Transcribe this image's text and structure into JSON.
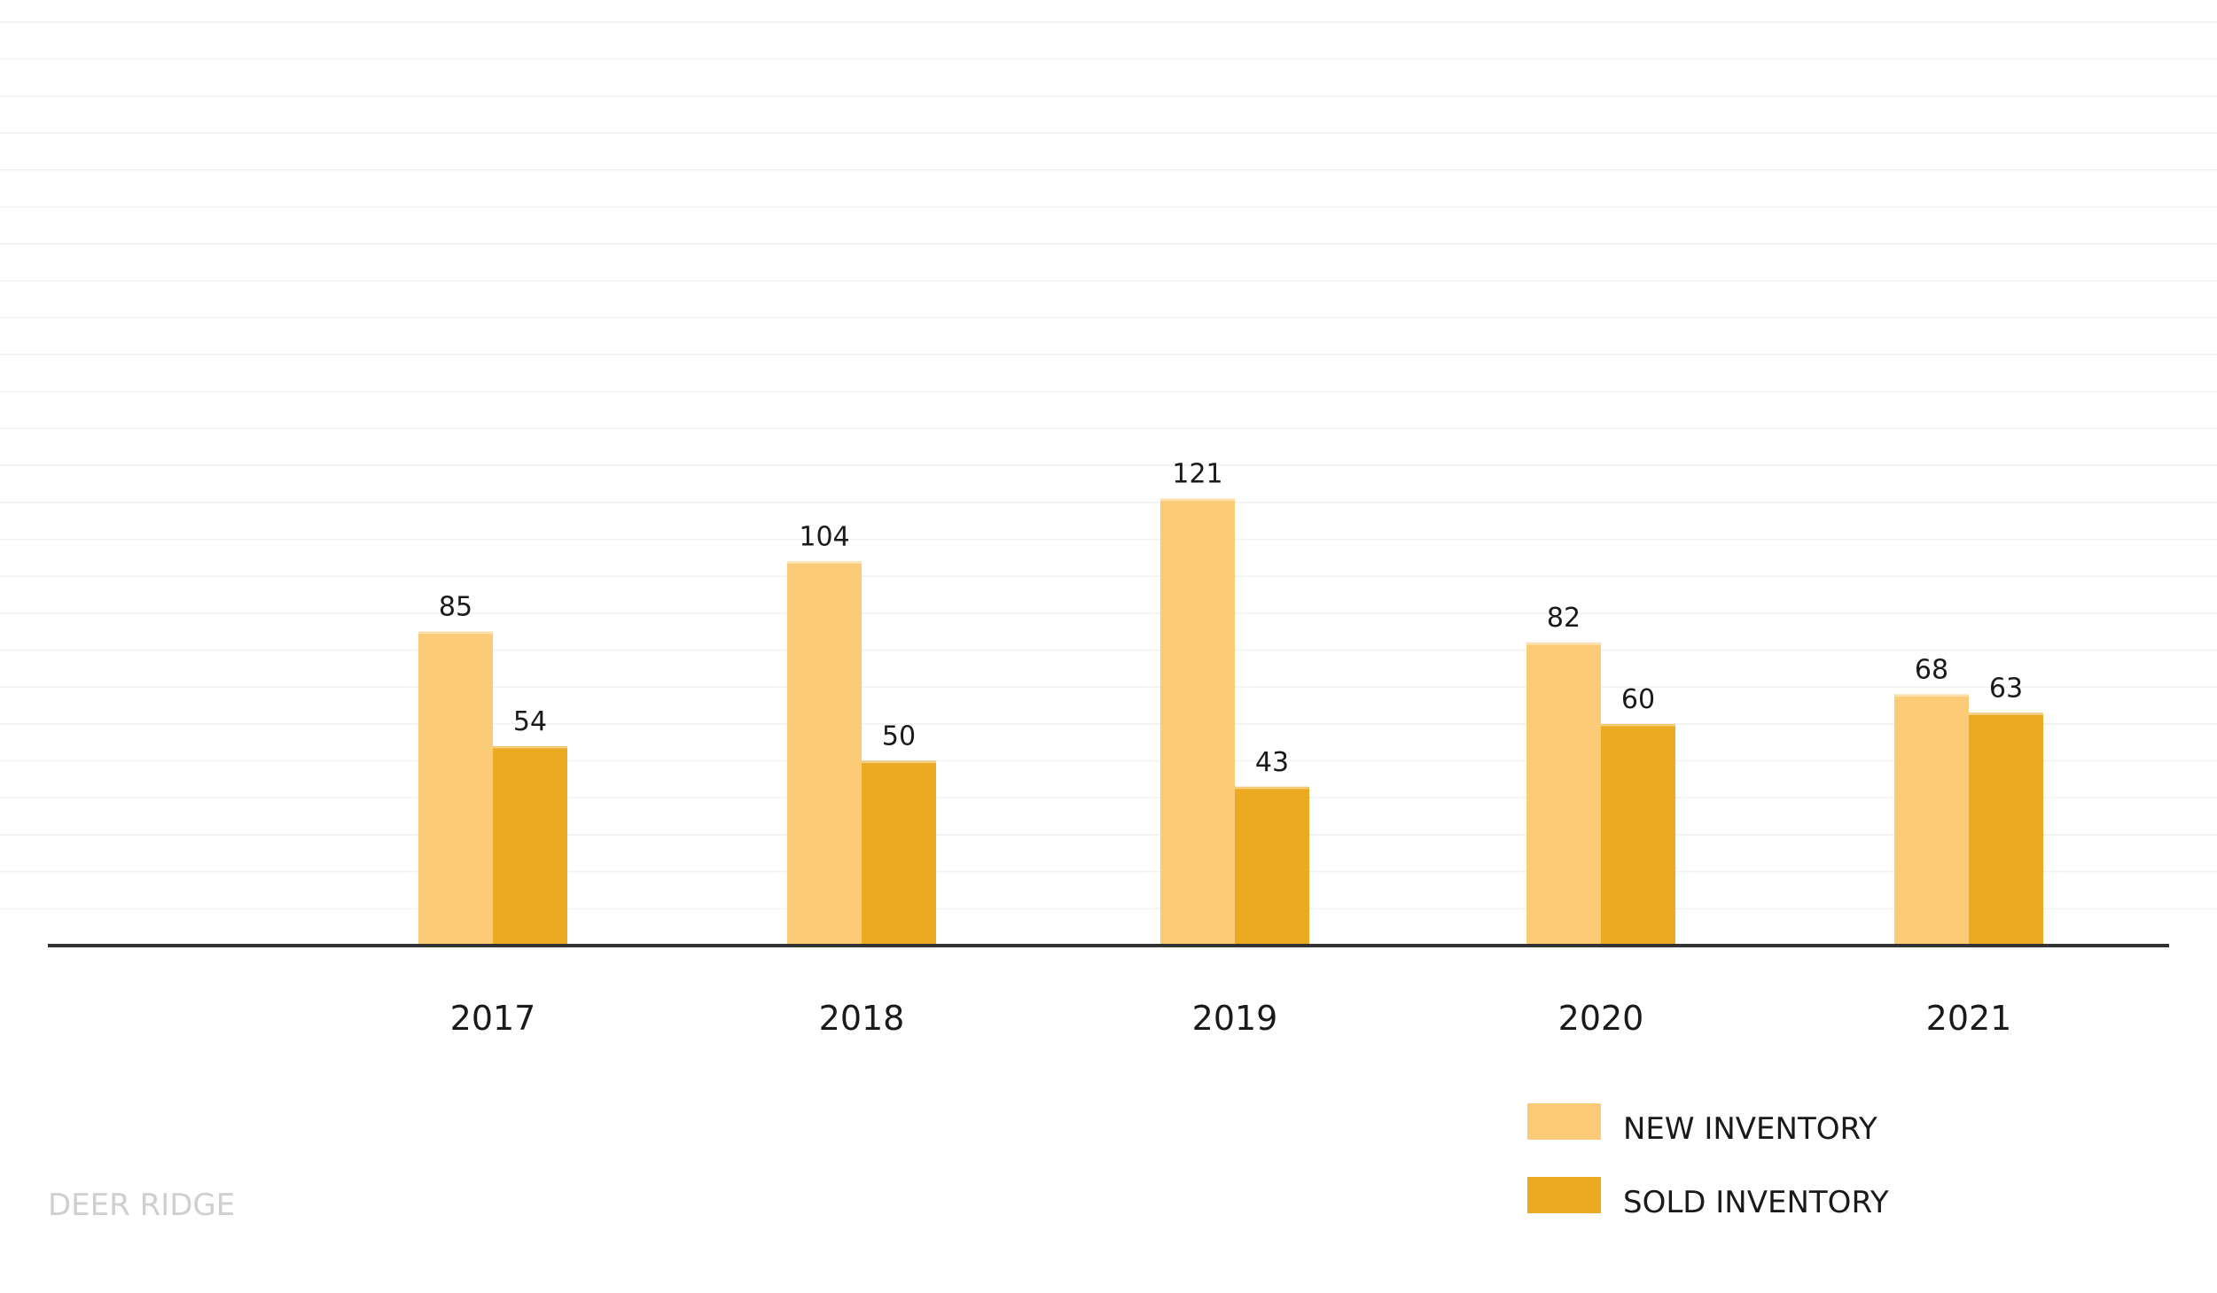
{
  "chart_data": {
    "type": "bar",
    "categories": [
      "2017",
      "2018",
      "2019",
      "2020",
      "2021"
    ],
    "series": [
      {
        "name": "NEW INVENTORY",
        "values": [
          85,
          104,
          121,
          82,
          68
        ],
        "color": "#FCCB77"
      },
      {
        "name": "SOLD INVENTORY",
        "values": [
          54,
          50,
          43,
          60,
          63
        ],
        "color": "#EBAA22"
      }
    ],
    "title": "",
    "xlabel": "",
    "ylabel": "",
    "ylim": [
      0,
      250
    ],
    "grid": true,
    "legend_position": "bottom-right",
    "data_labels": true
  },
  "colors": {
    "gridline": "#F1F1F1",
    "axis": "#333333",
    "bar_highlight": "#FFFFFF"
  },
  "watermark": "DEER RIDGE"
}
